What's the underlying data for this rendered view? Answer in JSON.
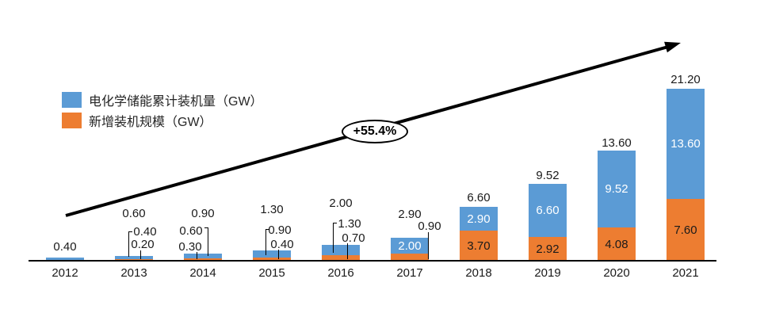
{
  "chart_data": {
    "type": "bar",
    "stacked": true,
    "categories": [
      "2012",
      "2013",
      "2014",
      "2015",
      "2016",
      "2017",
      "2018",
      "2019",
      "2020",
      "2021"
    ],
    "series": [
      {
        "name": "电化学储能累计装机量（GW）",
        "color": "#5B9BD5",
        "stack_position": "top",
        "values": [
          0.4,
          0.4,
          0.6,
          0.9,
          1.3,
          2.0,
          2.9,
          6.6,
          9.52,
          13.6
        ]
      },
      {
        "name": "新增装机规模（GW）",
        "color": "#ED7D31",
        "stack_position": "bottom",
        "values": [
          null,
          0.2,
          0.3,
          0.4,
          0.7,
          0.9,
          3.7,
          2.92,
          4.08,
          7.6
        ]
      }
    ],
    "totals": [
      0.4,
      0.6,
      0.9,
      1.3,
      2.0,
      2.9,
      6.6,
      9.52,
      13.6,
      21.2
    ],
    "annotation": "+55.4%",
    "legend_position": "top-left",
    "xlabel": "",
    "ylabel": "",
    "ylim": [
      0,
      22
    ],
    "grid": false
  },
  "legend": {
    "items": [
      {
        "label": "电化学储能累计装机量（GW）",
        "color": "#5B9BD5"
      },
      {
        "label": "新增装机规模（GW）",
        "color": "#ED7D31"
      }
    ]
  },
  "annotation": {
    "growth_label": "+55.4%"
  },
  "colors": {
    "cumulative": "#5B9BD5",
    "new": "#ED7D31",
    "arrow": "#000000"
  }
}
